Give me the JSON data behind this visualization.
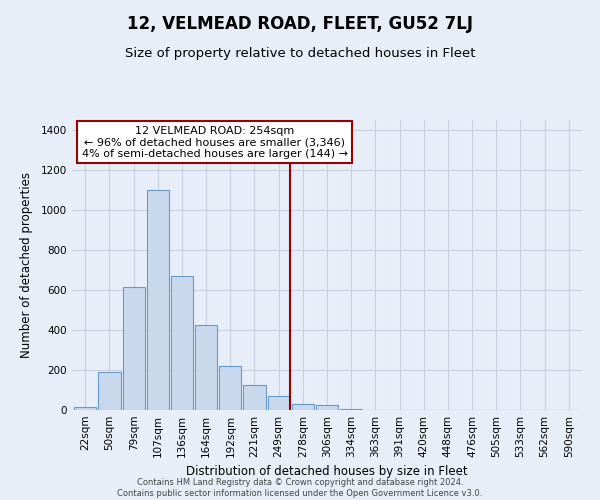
{
  "title": "12, VELMEAD ROAD, FLEET, GU52 7LJ",
  "subtitle": "Size of property relative to detached houses in Fleet",
  "xlabel": "Distribution of detached houses by size in Fleet",
  "ylabel": "Number of detached properties",
  "bar_labels": [
    "22sqm",
    "50sqm",
    "79sqm",
    "107sqm",
    "136sqm",
    "164sqm",
    "192sqm",
    "221sqm",
    "249sqm",
    "278sqm",
    "306sqm",
    "334sqm",
    "363sqm",
    "391sqm",
    "420sqm",
    "448sqm",
    "476sqm",
    "505sqm",
    "533sqm",
    "562sqm",
    "590sqm"
  ],
  "bar_heights": [
    15,
    190,
    615,
    1100,
    670,
    425,
    220,
    125,
    70,
    30,
    25,
    5,
    0,
    0,
    0,
    0,
    0,
    0,
    0,
    0,
    0
  ],
  "bar_fill_color": "#c9d9ed",
  "bar_edge_color": "#6699cc",
  "vline_x_index": 8,
  "vline_color": "#990000",
  "ylim": [
    0,
    1450
  ],
  "yticks": [
    0,
    200,
    400,
    600,
    800,
    1000,
    1200,
    1400
  ],
  "annotation_title": "12 VELMEAD ROAD: 254sqm",
  "annotation_line1": "← 96% of detached houses are smaller (3,346)",
  "annotation_line2": "4% of semi-detached houses are larger (144) →",
  "annotation_box_color": "#ffffff",
  "annotation_box_edge": "#990000",
  "footer1": "Contains HM Land Registry data © Crown copyright and database right 2024.",
  "footer2": "Contains public sector information licensed under the Open Government Licence v3.0.",
  "background_color": "#e8eef8",
  "grid_color": "#c8d0e0",
  "title_fontsize": 12,
  "subtitle_fontsize": 9.5,
  "axis_label_fontsize": 8.5,
  "tick_fontsize": 7.5
}
